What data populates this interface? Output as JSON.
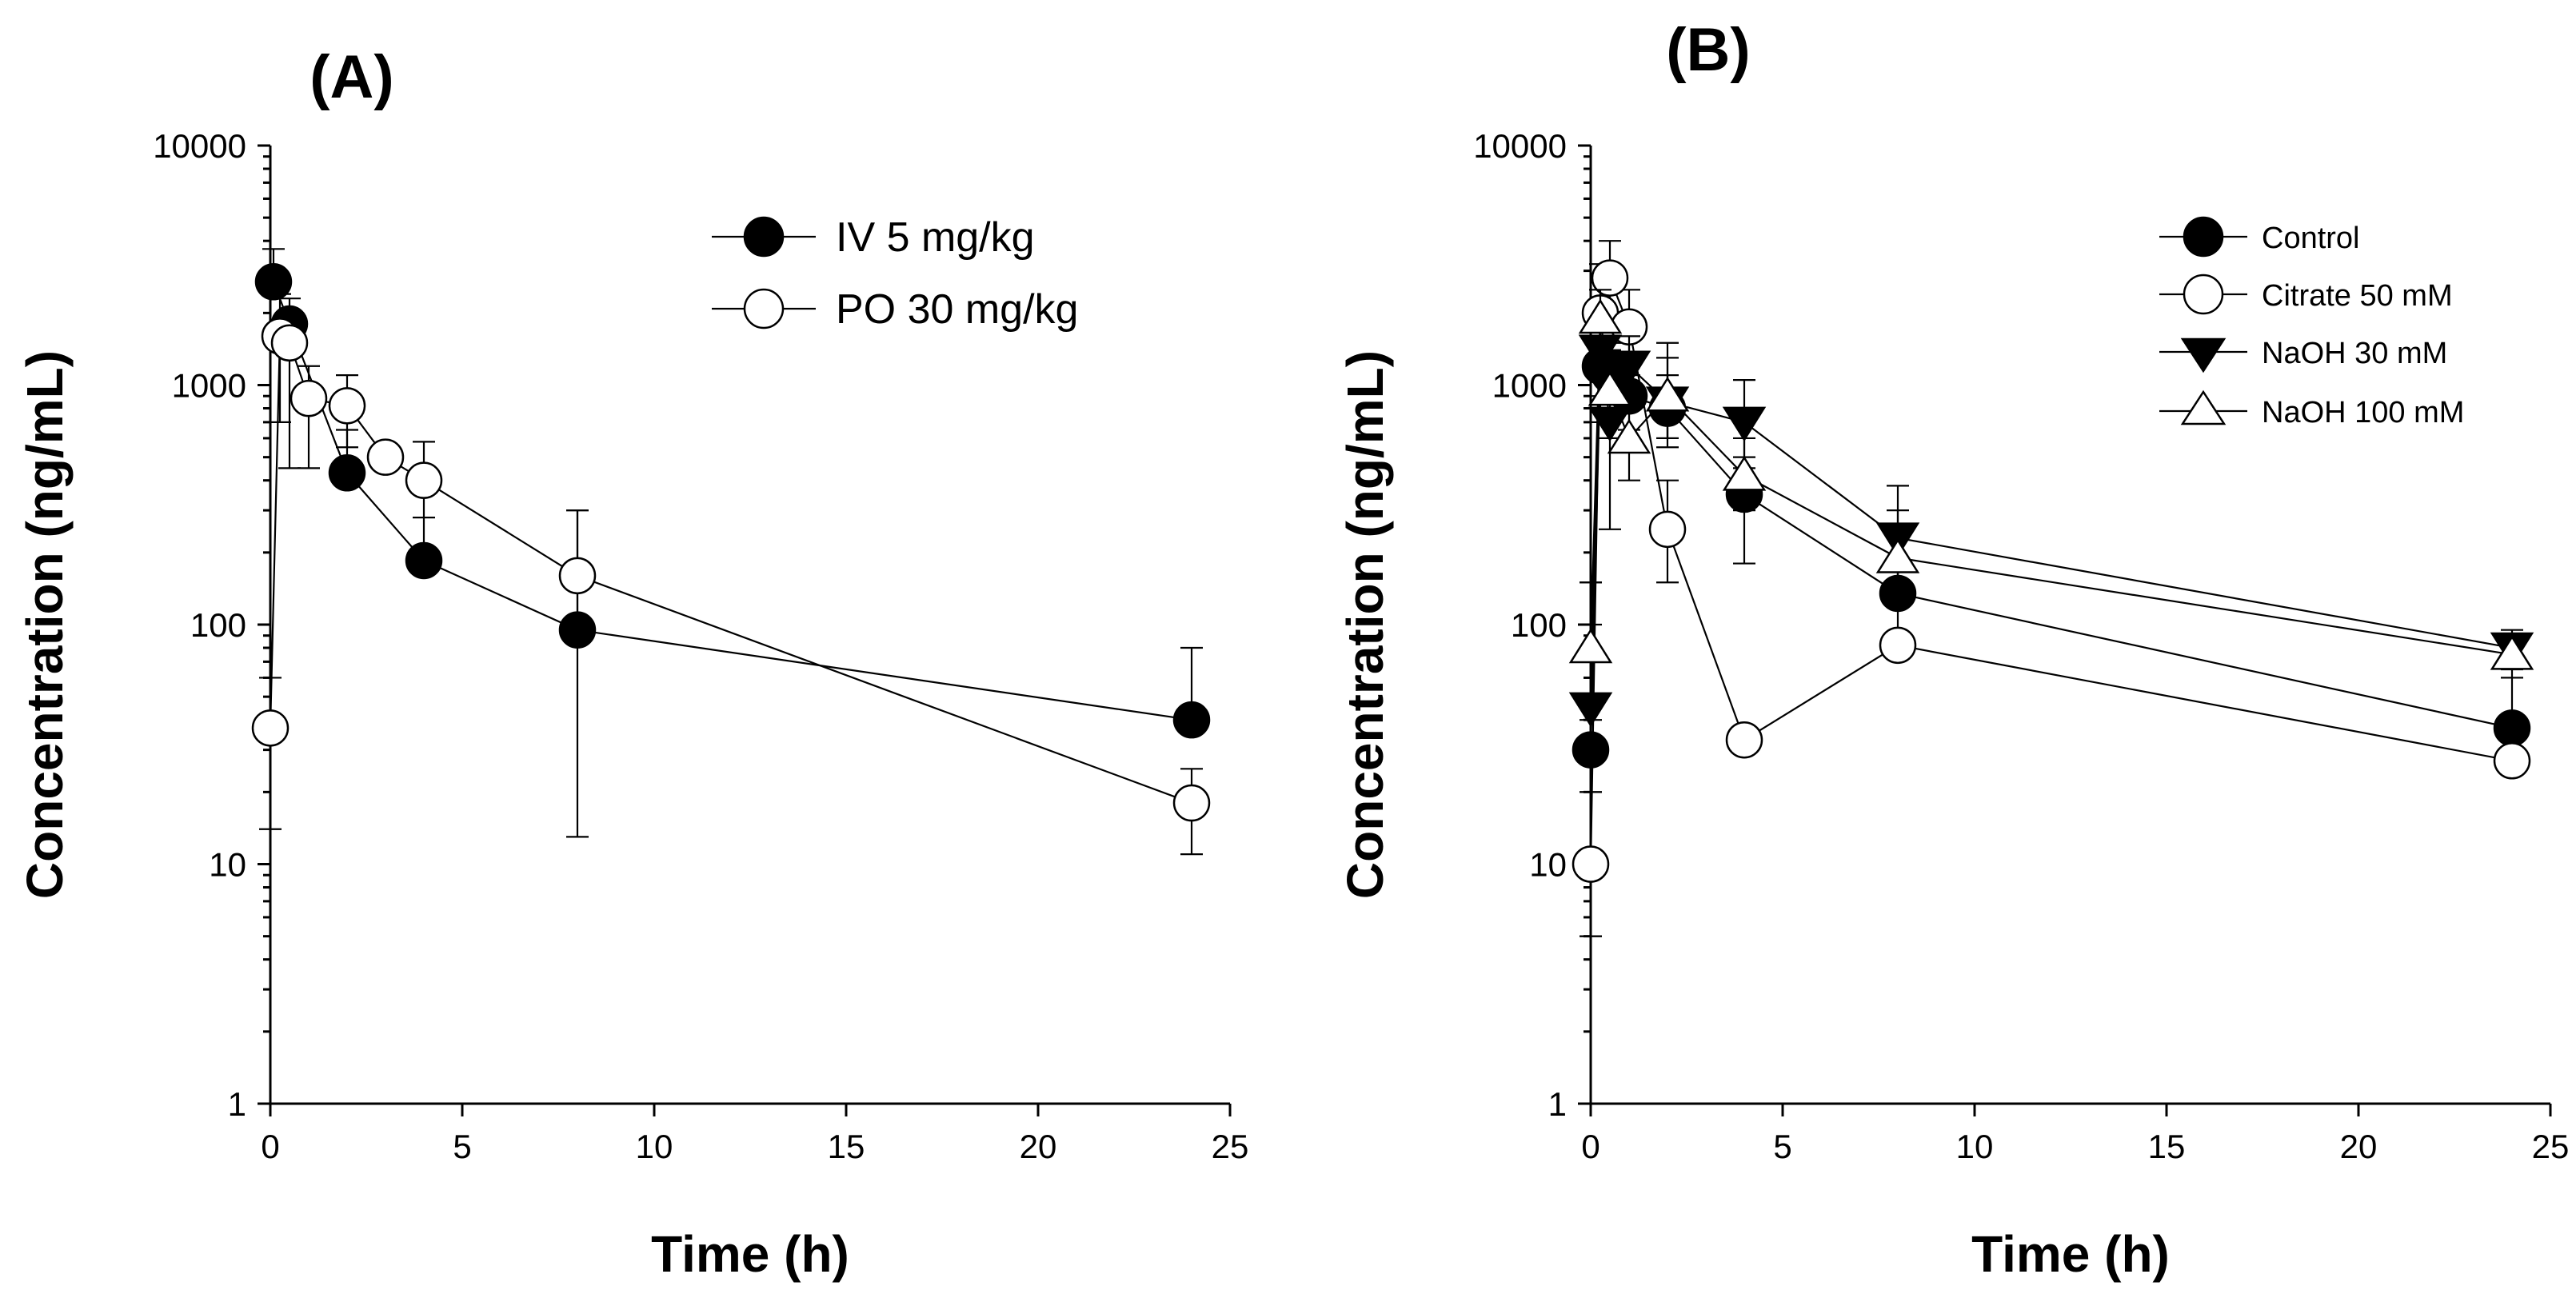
{
  "chart_data": [
    {
      "type": "line",
      "panel_label": "(A)",
      "xlabel": "Time (h)",
      "ylabel": "Concentration (ng/mL)",
      "xlim": [
        0,
        25
      ],
      "ylim": [
        1,
        10000
      ],
      "yscale": "log",
      "xticks": [
        0,
        5,
        10,
        15,
        20,
        25
      ],
      "xtick_labels": [
        "0",
        "5",
        "10",
        "15",
        "20",
        "25"
      ],
      "yticks": [
        1,
        10,
        100,
        1000,
        10000
      ],
      "ytick_labels": [
        "1",
        "10",
        "100",
        "1000",
        "10000"
      ],
      "grid": false,
      "legend_position": "top-right",
      "series": [
        {
          "name": "IV 5 mg/kg",
          "marker": "filled-circle",
          "x": [
            0.083,
            0.5,
            2,
            4,
            8,
            24
          ],
          "y": [
            2700,
            1800,
            430,
            185,
            95,
            40
          ],
          "err_upper": [
            3700,
            2300,
            650,
            280,
            300,
            80
          ]
        },
        {
          "name": "PO 30 mg/kg",
          "marker": "open-circle",
          "x": [
            0,
            0.25,
            0.5,
            1,
            2,
            3,
            4,
            8,
            24
          ],
          "y": [
            37,
            1600,
            1500,
            880,
            820,
            500,
            400,
            160,
            18
          ],
          "err_upper": [
            60,
            2400,
            2000,
            1200,
            1100,
            550,
            580,
            300,
            25
          ],
          "err_lower": [
            14,
            700,
            450,
            450,
            550,
            450,
            280,
            13,
            11
          ]
        }
      ]
    },
    {
      "type": "line",
      "panel_label": "(B)",
      "xlabel": "Time (h)",
      "ylabel": "Concentration (ng/mL)",
      "xlim": [
        0,
        25
      ],
      "ylim": [
        1,
        10000
      ],
      "yscale": "log",
      "xticks": [
        0,
        5,
        10,
        15,
        20,
        25
      ],
      "xtick_labels": [
        "0",
        "5",
        "10",
        "15",
        "20",
        "25"
      ],
      "yticks": [
        1,
        10,
        100,
        1000,
        10000
      ],
      "ytick_labels": [
        "1",
        "10",
        "100",
        "1000",
        "10000"
      ],
      "grid": false,
      "legend_position": "top-right",
      "series": [
        {
          "name": "Control",
          "marker": "filled-circle",
          "x": [
            0,
            0.25,
            0.5,
            1,
            2,
            4,
            8,
            24
          ],
          "y": [
            30,
            1200,
            1100,
            900,
            800,
            350,
            135,
            37
          ],
          "err_upper": [
            150,
            1800,
            1500,
            1100,
            1100,
            500,
            260,
            60
          ],
          "err_lower": [
            5,
            700,
            600,
            650,
            600,
            180,
            90,
            25
          ]
        },
        {
          "name": "Citrate 50 mM",
          "marker": "open-circle",
          "x": [
            0,
            0.25,
            0.5,
            1,
            2,
            4,
            8,
            24
          ],
          "y": [
            10,
            2000,
            2800,
            1750,
            250,
            33,
            82,
            27
          ],
          "err_upper": [
            20,
            3200,
            4000,
            2500,
            400,
            33,
            82,
            27
          ],
          "err_lower": [
            5,
            1200,
            2000,
            1200,
            150,
            33,
            82,
            27
          ]
        },
        {
          "name": "NaOH 30 mM",
          "marker": "filled-triangle-down",
          "x": [
            0,
            0.25,
            0.5,
            1,
            2,
            4,
            8,
            24
          ],
          "y": [
            45,
            1400,
            700,
            1200,
            850,
            700,
            230,
            80
          ],
          "err_upper": [
            100,
            1900,
            1300,
            1600,
            1500,
            1050,
            380,
            95
          ],
          "err_lower": [
            20,
            900,
            250,
            800,
            550,
            450,
            150,
            65
          ]
        },
        {
          "name": "NaOH 100 mM",
          "marker": "open-triangle-up",
          "x": [
            0,
            0.25,
            0.5,
            1,
            2,
            4,
            8,
            24
          ],
          "y": [
            80,
            1900,
            950,
            600,
            900,
            420,
            190,
            75
          ],
          "err_upper": [
            150,
            2500,
            1400,
            900,
            1300,
            600,
            300,
            90
          ],
          "err_lower": [
            40,
            1300,
            600,
            400,
            600,
            300,
            130,
            60
          ]
        }
      ]
    }
  ]
}
